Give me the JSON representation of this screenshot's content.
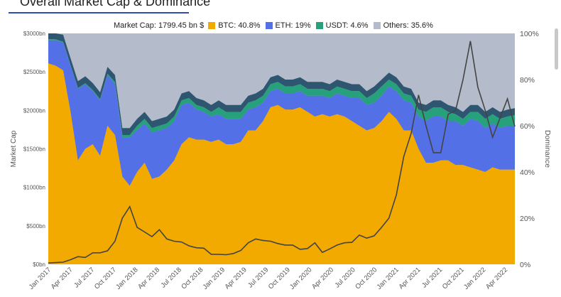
{
  "header": {
    "title": "Overall Market Cap & Dominance"
  },
  "legend": {
    "total": "Market Cap: 1799.45 bn $",
    "items": [
      {
        "label": "BTC: 40.8%",
        "color": "#f2a900"
      },
      {
        "label": "ETH: 19%",
        "color": "#5470e6"
      },
      {
        "label": "USDT: 4.6%",
        "color": "#26a17b"
      },
      {
        "label": "Others: 35.6%",
        "color": "#b4bccc"
      }
    ]
  },
  "chart_data": {
    "type": "area",
    "ylabel": "Market Cap",
    "y2label": "Dominance",
    "ylim": [
      0,
      3000
    ],
    "y2lim": [
      0,
      100
    ],
    "yticks": [
      "$0bn",
      "$500bn",
      "$1000bn",
      "$1500bn",
      "$2000bn",
      "$2500bn",
      "$3000bn"
    ],
    "y2ticks": [
      "0%",
      "20%",
      "40%",
      "60%",
      "80%",
      "100%"
    ],
    "xticks": [
      "Jan 2017",
      "Apr 2017",
      "Jul 2017",
      "Oct 2017",
      "Jan 2018",
      "Apr 2018",
      "Jul 2018",
      "Oct 2018",
      "Jan 2019",
      "Apr 2019",
      "Jul 2019",
      "Oct 2019",
      "Jan 2020",
      "Apr 2020",
      "Jul 2020",
      "Oct 2020",
      "Jan 2021",
      "Apr 2021",
      "Jul 2021",
      "Oct 2021",
      "Jan 2022",
      "Apr 2022"
    ],
    "colors": {
      "btc": "#f2a900",
      "eth": "#5470e6",
      "usdt": "#26a17b",
      "others": "#b4bccc",
      "topband": "#2f5670",
      "marketcap": "#444444"
    },
    "x": [
      "Jan 2017",
      "Mar 2017",
      "Apr 2017",
      "May 2017",
      "Jun 2017",
      "Jul 2017",
      "Aug 2017",
      "Sep 2017",
      "Oct 2017",
      "Nov 2017",
      "Dec 2017",
      "Jan 2018",
      "Feb 2018",
      "Mar 2018",
      "Apr 2018",
      "May 2018",
      "Jun 2018",
      "Jul 2018",
      "Aug 2018",
      "Sep 2018",
      "Oct 2018",
      "Nov 2018",
      "Dec 2018",
      "Jan 2019",
      "Feb 2019",
      "Mar 2019",
      "Apr 2019",
      "May 2019",
      "Jun 2019",
      "Jul 2019",
      "Aug 2019",
      "Sep 2019",
      "Oct 2019",
      "Nov 2019",
      "Dec 2019",
      "Jan 2020",
      "Feb 2020",
      "Mar 2020",
      "Apr 2020",
      "May 2020",
      "Jun 2020",
      "Jul 2020",
      "Aug 2020",
      "Sep 2020",
      "Oct 2020",
      "Nov 2020",
      "Dec 2020",
      "Jan 2021",
      "Feb 2021",
      "Mar 2021",
      "Apr 2021",
      "May 2021",
      "Jun 2021",
      "Jul 2021",
      "Aug 2021",
      "Sep 2021",
      "Oct 2021",
      "Nov 2021",
      "Dec 2021",
      "Jan 2022",
      "Feb 2022",
      "Mar 2022",
      "Apr 2022",
      "May 2022"
    ],
    "series": [
      {
        "name": "BTC",
        "values": [
          87,
          86,
          84,
          66,
          45,
          50,
          52,
          47,
          60,
          56,
          38,
          34,
          40,
          44,
          37,
          38,
          41,
          45,
          52,
          55,
          54,
          54,
          53,
          54,
          52,
          52,
          53,
          58,
          58,
          62,
          68,
          69,
          67,
          67,
          68,
          66,
          64,
          65,
          64,
          65,
          64,
          62,
          60,
          58,
          59,
          62,
          66,
          63,
          58,
          58,
          50,
          44,
          44,
          45,
          45,
          43,
          43,
          42,
          41,
          40,
          42,
          41,
          41,
          41
        ]
      },
      {
        "name": "ETH",
        "values": [
          10,
          11,
          12,
          20,
          31,
          28,
          23,
          24,
          22,
          22,
          17,
          21,
          18,
          17,
          20,
          20,
          18,
          17,
          17,
          15,
          13,
          12,
          11,
          11,
          11,
          11,
          10,
          9,
          10,
          8,
          7,
          7,
          7,
          7,
          7,
          7,
          9,
          8,
          8,
          9,
          9,
          10,
          12,
          11,
          11,
          11,
          11,
          12,
          13,
          12,
          14,
          18,
          20,
          19,
          17,
          19,
          17,
          21,
          21,
          19,
          19,
          18,
          19,
          19
        ]
      },
      {
        "name": "USDT",
        "values": [
          0.5,
          0.4,
          0.4,
          0.3,
          0.3,
          0.4,
          0.5,
          0.5,
          0.5,
          1,
          1,
          1,
          2,
          2,
          2,
          2,
          2,
          2,
          2,
          2,
          2,
          2,
          2,
          3,
          3,
          3,
          3,
          3,
          3,
          3,
          3,
          3,
          3,
          3,
          3,
          3,
          3,
          3,
          3,
          3,
          3,
          3,
          3,
          3,
          4,
          4,
          3,
          3,
          3,
          3,
          3,
          4,
          4,
          4,
          4,
          3,
          3,
          3,
          4,
          4,
          4,
          4,
          4,
          4.6
        ]
      },
      {
        "name": "Others",
        "values": [
          2.5,
          2.6,
          3.6,
          13.7,
          23.7,
          21.6,
          24.5,
          28.5,
          17.5,
          21,
          44,
          44,
          40,
          37,
          41,
          40,
          39,
          36,
          29,
          28,
          31,
          32,
          34,
          32,
          34,
          34,
          34,
          30,
          29,
          27,
          22,
          21,
          23,
          23,
          22,
          24,
          24,
          24,
          25,
          23,
          24,
          25,
          25,
          28,
          26,
          23,
          20,
          22,
          26,
          27,
          33,
          34,
          32,
          32,
          34,
          35,
          37,
          34,
          34,
          37,
          35,
          37,
          36,
          35.6
        ]
      },
      {
        "name": "Market Cap",
        "values": [
          18,
          22,
          28,
          60,
          100,
          90,
          150,
          150,
          175,
          300,
          600,
          750,
          480,
          420,
          360,
          450,
          330,
          300,
          290,
          240,
          215,
          210,
          130,
          130,
          125,
          140,
          180,
          280,
          330,
          310,
          300,
          270,
          250,
          250,
          195,
          205,
          280,
          155,
          200,
          250,
          280,
          285,
          380,
          340,
          370,
          480,
          600,
          900,
          1400,
          1700,
          2200,
          1800,
          1450,
          1450,
          1950,
          2000,
          2400,
          2900,
          2300,
          2000,
          1650,
          1900,
          2150,
          1790
        ]
      }
    ]
  }
}
